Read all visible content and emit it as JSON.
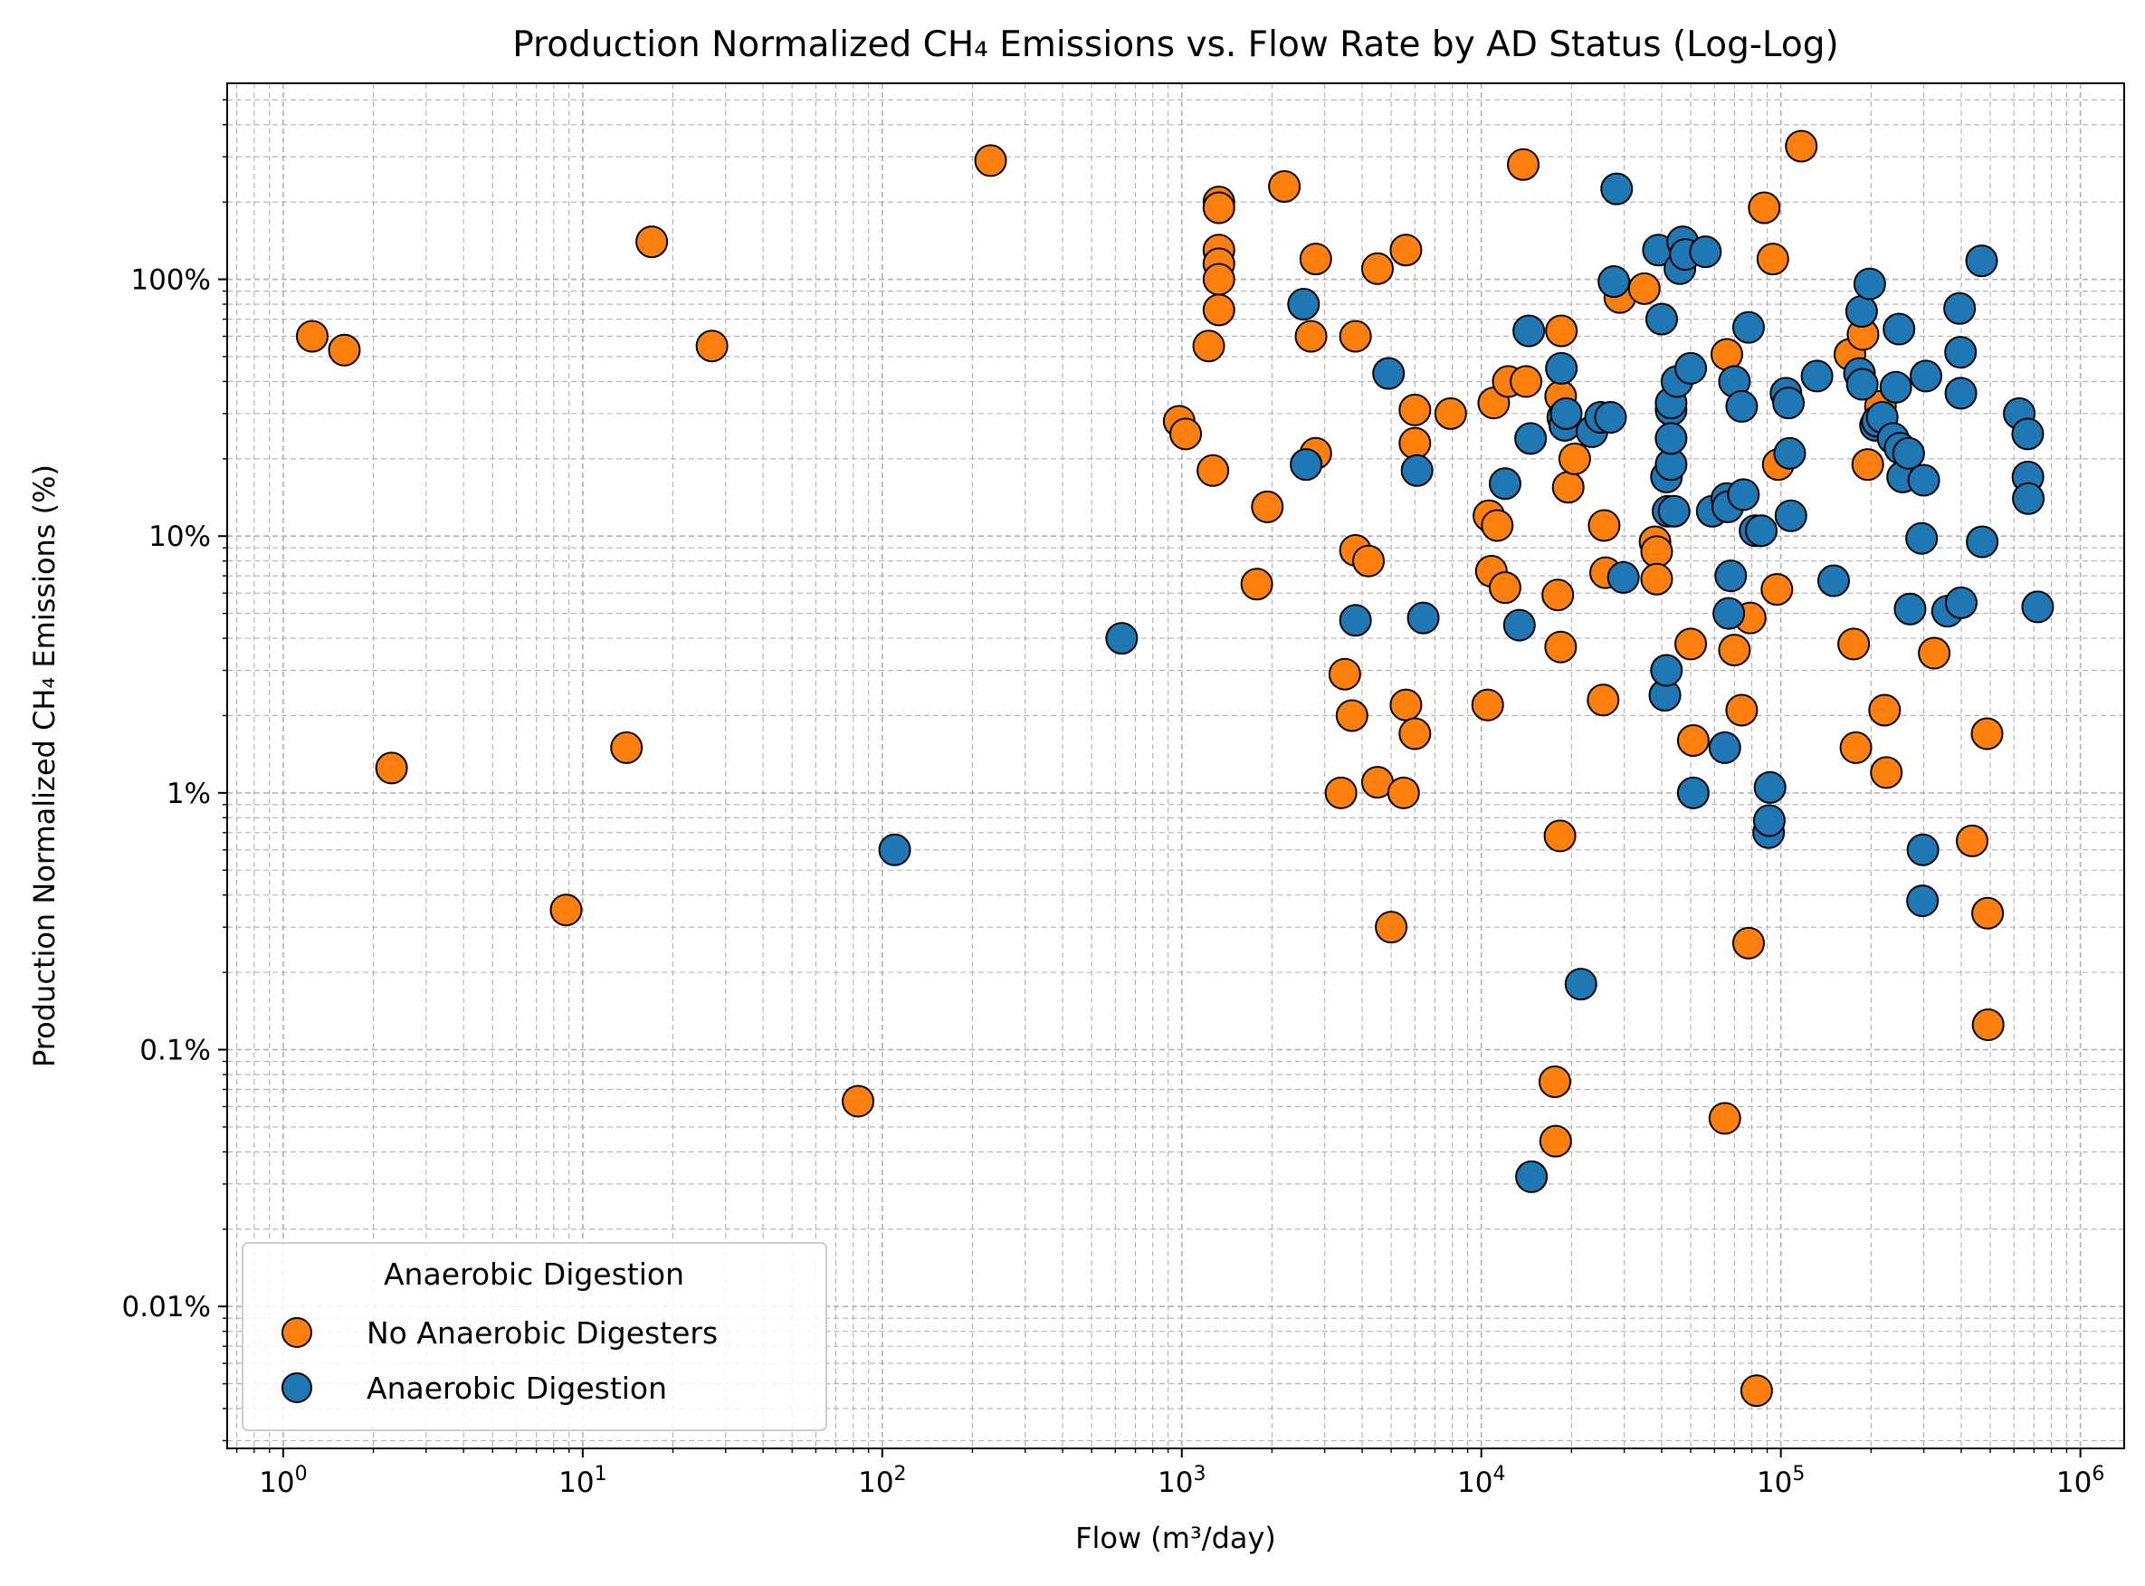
{
  "chart_data": {
    "type": "scatter",
    "title": "Production Normalized CH₄ Emissions vs. Flow Rate by AD Status (Log-Log)",
    "xlabel": "Flow (m³/day)",
    "ylabel": "Production Normalized CH₄ Emissions (%)",
    "x_scale": "log",
    "y_scale": "log",
    "xlim": [
      0.65,
      1400000
    ],
    "ylim": [
      0.0028,
      580
    ],
    "grid": true,
    "x_ticks": [
      {
        "value": 1,
        "base": "10",
        "exp": "0"
      },
      {
        "value": 10,
        "base": "10",
        "exp": "1"
      },
      {
        "value": 100,
        "base": "10",
        "exp": "2"
      },
      {
        "value": 1000,
        "base": "10",
        "exp": "3"
      },
      {
        "value": 10000,
        "base": "10",
        "exp": "4"
      },
      {
        "value": 100000,
        "base": "10",
        "exp": "5"
      },
      {
        "value": 1000000,
        "base": "10",
        "exp": "6"
      }
    ],
    "y_ticks": [
      {
        "value": 0.01,
        "label": "0.01%"
      },
      {
        "value": 0.1,
        "label": "0.1%"
      },
      {
        "value": 1,
        "label": "1%"
      },
      {
        "value": 10,
        "label": "10%"
      },
      {
        "value": 100,
        "label": "100%"
      }
    ],
    "legend": {
      "title": "Anaerobic Digestion",
      "position": "lower-left"
    },
    "series": [
      {
        "name": "No Anaerobic Digesters",
        "color": "#ff7f0e",
        "points": [
          [
            1.25,
            60
          ],
          [
            1.6,
            53
          ],
          [
            2.3,
            1.25
          ],
          [
            8.8,
            0.35
          ],
          [
            14,
            1.5
          ],
          [
            17,
            140
          ],
          [
            27,
            55
          ],
          [
            83,
            0.063
          ],
          [
            230,
            290
          ],
          [
            980,
            28
          ],
          [
            1030,
            25
          ],
          [
            1230,
            55
          ],
          [
            1270,
            18
          ],
          [
            1330,
            200
          ],
          [
            1330,
            190
          ],
          [
            1330,
            130
          ],
          [
            1330,
            115
          ],
          [
            1330,
            100
          ],
          [
            1330,
            76
          ],
          [
            1780,
            6.5
          ],
          [
            1930,
            13
          ],
          [
            2200,
            230
          ],
          [
            2700,
            60
          ],
          [
            2800,
            120
          ],
          [
            2800,
            21
          ],
          [
            3400,
            1.0
          ],
          [
            3500,
            2.9
          ],
          [
            3700,
            2.0
          ],
          [
            3800,
            8.8
          ],
          [
            3800,
            60
          ],
          [
            4200,
            8.0
          ],
          [
            4500,
            110
          ],
          [
            4500,
            1.1
          ],
          [
            5000,
            0.3
          ],
          [
            5500,
            1.0
          ],
          [
            5600,
            2.2
          ],
          [
            5600,
            130
          ],
          [
            6000,
            1.7
          ],
          [
            6000,
            23
          ],
          [
            6000,
            31
          ],
          [
            7900,
            30
          ],
          [
            10500,
            2.2
          ],
          [
            10600,
            12
          ],
          [
            10800,
            7.3
          ],
          [
            11000,
            33
          ],
          [
            11300,
            11
          ],
          [
            12000,
            6.3
          ],
          [
            12300,
            40
          ],
          [
            13800,
            280
          ],
          [
            14100,
            40
          ],
          [
            17600,
            0.075
          ],
          [
            17700,
            0.044
          ],
          [
            18000,
            5.9
          ],
          [
            18400,
            3.7
          ],
          [
            18300,
            0.68
          ],
          [
            18400,
            35
          ],
          [
            18500,
            63
          ],
          [
            19500,
            15.5
          ],
          [
            20500,
            20
          ],
          [
            25500,
            2.3
          ],
          [
            25700,
            11
          ],
          [
            26000,
            7.2
          ],
          [
            29000,
            85
          ],
          [
            35000,
            92
          ],
          [
            38000,
            9.5
          ],
          [
            38500,
            8.7
          ],
          [
            38500,
            6.8
          ],
          [
            50000,
            3.8
          ],
          [
            51000,
            1.6
          ],
          [
            65000,
            0.054
          ],
          [
            66000,
            51
          ],
          [
            70000,
            3.6
          ],
          [
            74000,
            2.1
          ],
          [
            78000,
            0.26
          ],
          [
            79000,
            4.8
          ],
          [
            83000,
            0.0047
          ],
          [
            88000,
            190
          ],
          [
            94000,
            120
          ],
          [
            97000,
            6.2
          ],
          [
            98000,
            19
          ],
          [
            117000,
            330
          ],
          [
            170000,
            51
          ],
          [
            175000,
            3.8
          ],
          [
            178000,
            1.5
          ],
          [
            188000,
            61
          ],
          [
            195000,
            19
          ],
          [
            215000,
            32
          ],
          [
            222000,
            2.1
          ],
          [
            225000,
            1.2
          ],
          [
            325000,
            3.5
          ],
          [
            435000,
            0.65
          ],
          [
            488000,
            1.7
          ],
          [
            490000,
            0.34
          ],
          [
            492000,
            0.125
          ]
        ]
      },
      {
        "name": "Anaerobic Digestion",
        "color": "#1f77b4",
        "points": [
          [
            110,
            0.6
          ],
          [
            630,
            4.0
          ],
          [
            2550,
            80
          ],
          [
            2600,
            19
          ],
          [
            3800,
            4.7
          ],
          [
            4900,
            43
          ],
          [
            6100,
            18
          ],
          [
            6400,
            4.8
          ],
          [
            12000,
            16
          ],
          [
            13400,
            4.5
          ],
          [
            14400,
            63
          ],
          [
            14600,
            24
          ],
          [
            14700,
            0.032
          ],
          [
            18500,
            45
          ],
          [
            18700,
            29
          ],
          [
            19000,
            27
          ],
          [
            19200,
            30
          ],
          [
            21500,
            0.18
          ],
          [
            23400,
            25.5
          ],
          [
            25000,
            29
          ],
          [
            27000,
            29
          ],
          [
            27700,
            98
          ],
          [
            28300,
            225
          ],
          [
            29800,
            6.9
          ],
          [
            39000,
            130
          ],
          [
            40000,
            70
          ],
          [
            41000,
            2.4
          ],
          [
            41500,
            3.0
          ],
          [
            41500,
            17
          ],
          [
            42000,
            12.5
          ],
          [
            43000,
            19
          ],
          [
            43000,
            31
          ],
          [
            43000,
            33
          ],
          [
            43000,
            24
          ],
          [
            44000,
            12.5
          ],
          [
            45000,
            40
          ],
          [
            46000,
            110
          ],
          [
            47000,
            140
          ],
          [
            48000,
            125
          ],
          [
            50000,
            45
          ],
          [
            51000,
            1.0
          ],
          [
            56000,
            128
          ],
          [
            59000,
            12.5
          ],
          [
            65000,
            1.5
          ],
          [
            66000,
            14
          ],
          [
            66500,
            13
          ],
          [
            67000,
            5.0
          ],
          [
            68000,
            7.0
          ],
          [
            70000,
            40
          ],
          [
            74000,
            32
          ],
          [
            75000,
            14.5
          ],
          [
            78000,
            65
          ],
          [
            82000,
            10.5
          ],
          [
            86000,
            10.5
          ],
          [
            91000,
            0.7
          ],
          [
            91500,
            0.78
          ],
          [
            92000,
            1.05
          ],
          [
            104000,
            36
          ],
          [
            106000,
            33
          ],
          [
            107000,
            21
          ],
          [
            108000,
            12
          ],
          [
            132000,
            42
          ],
          [
            150000,
            6.7
          ],
          [
            183000,
            43
          ],
          [
            186000,
            75
          ],
          [
            187000,
            39
          ],
          [
            198000,
            96
          ],
          [
            207000,
            27
          ],
          [
            210000,
            28
          ],
          [
            218000,
            29
          ],
          [
            237000,
            24
          ],
          [
            242000,
            38
          ],
          [
            248000,
            64
          ],
          [
            250000,
            22
          ],
          [
            255000,
            17
          ],
          [
            267000,
            21
          ],
          [
            270000,
            5.2
          ],
          [
            295000,
            9.8
          ],
          [
            297000,
            0.38
          ],
          [
            298000,
            0.6
          ],
          [
            300000,
            16.5
          ],
          [
            305000,
            42
          ],
          [
            360000,
            5.1
          ],
          [
            395000,
            77
          ],
          [
            398000,
            52
          ],
          [
            399000,
            36
          ],
          [
            400000,
            5.5
          ],
          [
            468000,
            118
          ],
          [
            470000,
            9.5
          ],
          [
            625000,
            30
          ],
          [
            667000,
            25
          ],
          [
            668000,
            17
          ],
          [
            670000,
            14
          ],
          [
            720000,
            5.3
          ]
        ]
      }
    ]
  }
}
